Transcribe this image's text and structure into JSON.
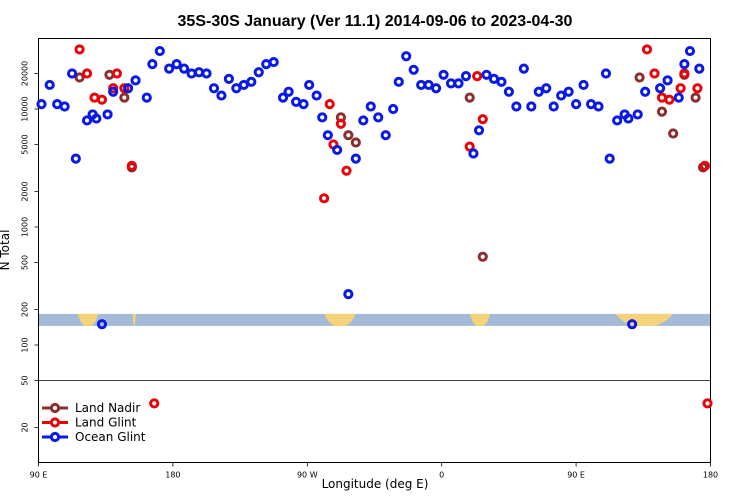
{
  "chart_data": {
    "type": "scatter",
    "title": "35S-30S January (Ver 11.1)   2014-09-06 to 2023-04-30",
    "xlabel": "Longitude (deg E)",
    "ylabel": "N Total",
    "x_range": [
      90,
      450
    ],
    "y_scale": "log",
    "y_range": [
      10,
      45000
    ],
    "x_ticks": [
      {
        "value": 90,
        "label": "90 E"
      },
      {
        "value": 162,
        "label": "180"
      },
      {
        "value": 234,
        "label": "90 W"
      },
      {
        "value": 306,
        "label": "0"
      },
      {
        "value": 378,
        "label": "90 E"
      },
      {
        "value": 450,
        "label": "180"
      }
    ],
    "y_ticks": [
      {
        "value": 20000,
        "label": "20000"
      },
      {
        "value": 10000,
        "label": "10000"
      },
      {
        "value": 5000,
        "label": "5000"
      },
      {
        "value": 2000,
        "label": "2000"
      },
      {
        "value": 1000,
        "label": "1000"
      },
      {
        "value": 500,
        "label": "500"
      },
      {
        "value": 200,
        "label": "200"
      },
      {
        "value": 100,
        "label": "100"
      },
      {
        "value": 50,
        "label": "50"
      },
      {
        "value": 20,
        "label": "20"
      }
    ],
    "reference_line": 50,
    "land_band": {
      "y_value": 160,
      "ocean_color": "#a3bbd6",
      "land_color": "#f5d37a",
      "land_segments": [
        [
          111,
          122
        ],
        [
          142,
          140.5
        ],
        [
          243,
          260
        ],
        [
          321,
          332
        ],
        [
          399,
          430
        ]
      ]
    },
    "legend_position": "bottom-left",
    "series": [
      {
        "name": "Land Nadir",
        "color": "#8b2e2e",
        "points": [
          [
            112,
            18500
          ],
          [
            128,
            19500
          ],
          [
            136,
            12500
          ],
          [
            140,
            3200
          ],
          [
            252,
            8500
          ],
          [
            256,
            6000
          ],
          [
            260,
            5200
          ],
          [
            321,
            12500
          ],
          [
            328,
            560
          ],
          [
            412,
            18500
          ],
          [
            424,
            9500
          ],
          [
            430,
            6200
          ],
          [
            436,
            19500
          ],
          [
            442,
            12500
          ],
          [
            446,
            3200
          ]
        ]
      },
      {
        "name": "Land Glint",
        "color": "#e8050a",
        "points": [
          [
            112,
            32000
          ],
          [
            116,
            20000
          ],
          [
            120,
            12500
          ],
          [
            124,
            12000
          ],
          [
            130,
            15000
          ],
          [
            132,
            20000
          ],
          [
            136,
            15000
          ],
          [
            140,
            3300
          ],
          [
            152,
            32
          ],
          [
            243,
            1750
          ],
          [
            246,
            11000
          ],
          [
            248,
            5000
          ],
          [
            252,
            7500
          ],
          [
            255,
            3000
          ],
          [
            321,
            4800
          ],
          [
            325,
            19000
          ],
          [
            328,
            8200
          ],
          [
            416,
            32000
          ],
          [
            420,
            20000
          ],
          [
            424,
            12500
          ],
          [
            428,
            12000
          ],
          [
            434,
            15000
          ],
          [
            436,
            20000
          ],
          [
            443,
            15000
          ],
          [
            447,
            3300
          ],
          [
            451,
            32
          ]
        ]
      },
      {
        "name": "Ocean Glint",
        "color": "#0a1ae6",
        "points": [
          [
            91,
            11000
          ],
          [
            96,
            16000
          ],
          [
            100,
            11000
          ],
          [
            104,
            10500
          ],
          [
            108,
            20000
          ],
          [
            110,
            3800
          ],
          [
            116,
            8000
          ],
          [
            119,
            9000
          ],
          [
            121,
            8300
          ],
          [
            124,
            150
          ],
          [
            127,
            9000
          ],
          [
            130,
            14000
          ],
          [
            138,
            15000
          ],
          [
            142,
            17500
          ],
          [
            148,
            12500
          ],
          [
            151,
            24000
          ],
          [
            155,
            31000
          ],
          [
            160,
            22000
          ],
          [
            164,
            24000
          ],
          [
            168,
            22000
          ],
          [
            172,
            20000
          ],
          [
            176,
            20500
          ],
          [
            180,
            20000
          ],
          [
            184,
            15000
          ],
          [
            188,
            13000
          ],
          [
            192,
            18000
          ],
          [
            196,
            15000
          ],
          [
            200,
            16000
          ],
          [
            204,
            17000
          ],
          [
            208,
            20500
          ],
          [
            212,
            24000
          ],
          [
            216,
            25000
          ],
          [
            221,
            12500
          ],
          [
            224,
            14000
          ],
          [
            228,
            11500
          ],
          [
            232,
            11000
          ],
          [
            235,
            16000
          ],
          [
            239,
            13000
          ],
          [
            242,
            8500
          ],
          [
            245,
            6000
          ],
          [
            250,
            4500
          ],
          [
            256,
            270
          ],
          [
            260,
            3800
          ],
          [
            264,
            8000
          ],
          [
            268,
            10500
          ],
          [
            272,
            8500
          ],
          [
            276,
            6000
          ],
          [
            280,
            10000
          ],
          [
            283,
            17000
          ],
          [
            287,
            28000
          ],
          [
            291,
            21500
          ],
          [
            295,
            16000
          ],
          [
            299,
            16000
          ],
          [
            303,
            15000
          ],
          [
            307,
            19500
          ],
          [
            311,
            16500
          ],
          [
            315,
            16500
          ],
          [
            319,
            19000
          ],
          [
            323,
            4200
          ],
          [
            326,
            6600
          ],
          [
            330,
            19500
          ],
          [
            334,
            18000
          ],
          [
            338,
            17000
          ],
          [
            342,
            14000
          ],
          [
            346,
            10500
          ],
          [
            350,
            22000
          ],
          [
            354,
            10500
          ],
          [
            358,
            14000
          ],
          [
            362,
            15000
          ],
          [
            366,
            10500
          ],
          [
            370,
            13000
          ],
          [
            374,
            14000
          ],
          [
            378,
            11000
          ],
          [
            382,
            16000
          ],
          [
            386,
            11000
          ],
          [
            390,
            10500
          ],
          [
            394,
            20000
          ],
          [
            396,
            3800
          ],
          [
            400,
            8000
          ],
          [
            404,
            9000
          ],
          [
            406,
            8300
          ],
          [
            408,
            150
          ],
          [
            411,
            9000
          ],
          [
            415,
            14000
          ],
          [
            423,
            15000
          ],
          [
            427,
            17500
          ],
          [
            433,
            12500
          ],
          [
            436,
            24000
          ],
          [
            439,
            31000
          ],
          [
            444,
            22000
          ]
        ]
      }
    ]
  }
}
